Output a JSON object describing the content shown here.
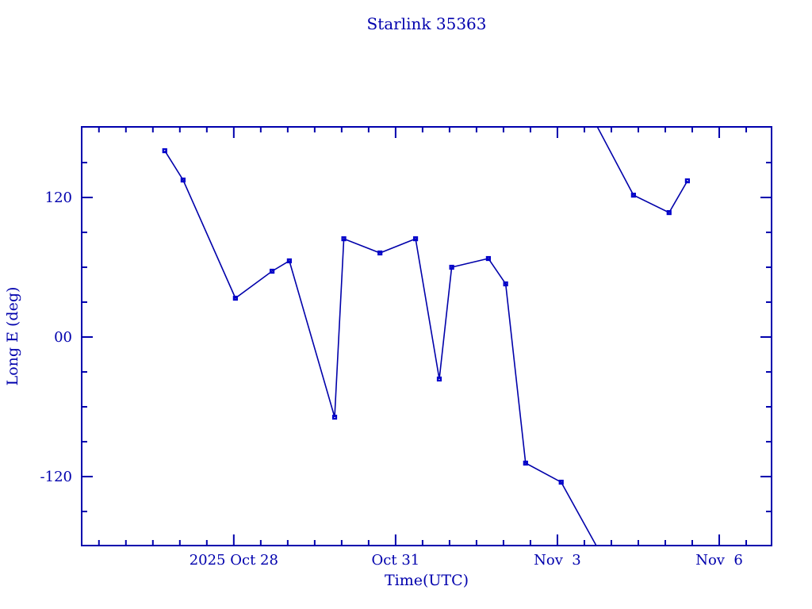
{
  "page": {
    "background_color": "#ffffff",
    "accent_color": "#0000ad"
  },
  "chart_data": {
    "type": "line",
    "title": "Starlink 35363",
    "xlabel": "Time(UTC)",
    "ylabel": "Long E (deg)",
    "legend": "none",
    "grid": false,
    "line_color": "#0000aa",
    "marker_color": "#0000cc",
    "text_color": "#0000ad",
    "marker": "filled-square",
    "x_axis": {
      "unit": "days since 2025-10-25 00:00 UTC",
      "range": [
        0.18,
        12.97
      ],
      "minor_step_days": 0.5,
      "major_ticks": [
        {
          "value": 3,
          "label": "2025 Oct 28",
          "date": "2025-10-28"
        },
        {
          "value": 6,
          "label": "Oct 31",
          "date": "2025-10-31"
        },
        {
          "value": 9,
          "label": "Nov  3",
          "date": "2025-11-03"
        },
        {
          "value": 12,
          "label": "Nov  6",
          "date": "2025-11-06"
        }
      ]
    },
    "y_axis": {
      "unit": "degrees east longitude",
      "range": [
        -179.3,
        180.7
      ],
      "minor_step_deg": 30,
      "major_step_deg": 120,
      "major_ticks": [
        {
          "value": 120,
          "label": "120"
        },
        {
          "value": 0,
          "label": "00"
        },
        {
          "value": -120,
          "label": "-120"
        }
      ]
    },
    "wrap_note": "track wraps from -180 deg to +180 deg near day 9.72 (approx 2025-11-03 17:00 UTC)",
    "segments": [
      {
        "points": [
          {
            "t_day": 1.72,
            "utc": "2025-10-26 17:00",
            "lon_deg": 160.2,
            "marker": true
          },
          {
            "t_day": 2.06,
            "utc": "2025-10-27 01:00",
            "lon_deg": 135.0,
            "marker": true
          },
          {
            "t_day": 3.03,
            "utc": "2025-10-28 01:00",
            "lon_deg": 33.4,
            "marker": true
          },
          {
            "t_day": 3.71,
            "utc": "2025-10-28 17:00",
            "lon_deg": 56.6,
            "marker": true
          },
          {
            "t_day": 4.03,
            "utc": "2025-10-29 01:00",
            "lon_deg": 65.5,
            "marker": true
          },
          {
            "t_day": 4.87,
            "utc": "2025-10-29 21:00",
            "lon_deg": -68.9,
            "marker": true
          },
          {
            "t_day": 5.04,
            "utc": "2025-10-30 01:00",
            "lon_deg": 84.5,
            "marker": true
          },
          {
            "t_day": 5.71,
            "utc": "2025-10-30 17:00",
            "lon_deg": 72.3,
            "marker": true
          },
          {
            "t_day": 6.37,
            "utc": "2025-10-31 09:00",
            "lon_deg": 84.5,
            "marker": true
          },
          {
            "t_day": 6.81,
            "utc": "2025-10-31 19:00",
            "lon_deg": -36.1,
            "marker": true
          },
          {
            "t_day": 7.04,
            "utc": "2025-11-01 01:00",
            "lon_deg": 60.0,
            "marker": true
          },
          {
            "t_day": 7.72,
            "utc": "2025-11-01 17:00",
            "lon_deg": 67.5,
            "marker": true
          },
          {
            "t_day": 8.04,
            "utc": "2025-11-02 01:00",
            "lon_deg": 45.7,
            "marker": true
          },
          {
            "t_day": 8.41,
            "utc": "2025-11-02 10:00",
            "lon_deg": -108.4,
            "marker": true
          },
          {
            "t_day": 9.07,
            "utc": "2025-11-03 02:00",
            "lon_deg": -124.8,
            "marker": true
          },
          {
            "t_day": 9.72,
            "utc": "2025-11-03 17:00",
            "lon_deg": -179.3,
            "marker": false
          }
        ]
      },
      {
        "points": [
          {
            "t_day": 9.74,
            "utc": "2025-11-03 18:00",
            "lon_deg": 180.7,
            "marker": false
          },
          {
            "t_day": 10.41,
            "utc": "2025-11-04 10:00",
            "lon_deg": 122.0,
            "marker": true
          },
          {
            "t_day": 11.07,
            "utc": "2025-11-05 02:00",
            "lon_deg": 107.0,
            "marker": true
          },
          {
            "t_day": 11.41,
            "utc": "2025-11-05 10:00",
            "lon_deg": 134.3,
            "marker": true
          }
        ]
      }
    ]
  }
}
